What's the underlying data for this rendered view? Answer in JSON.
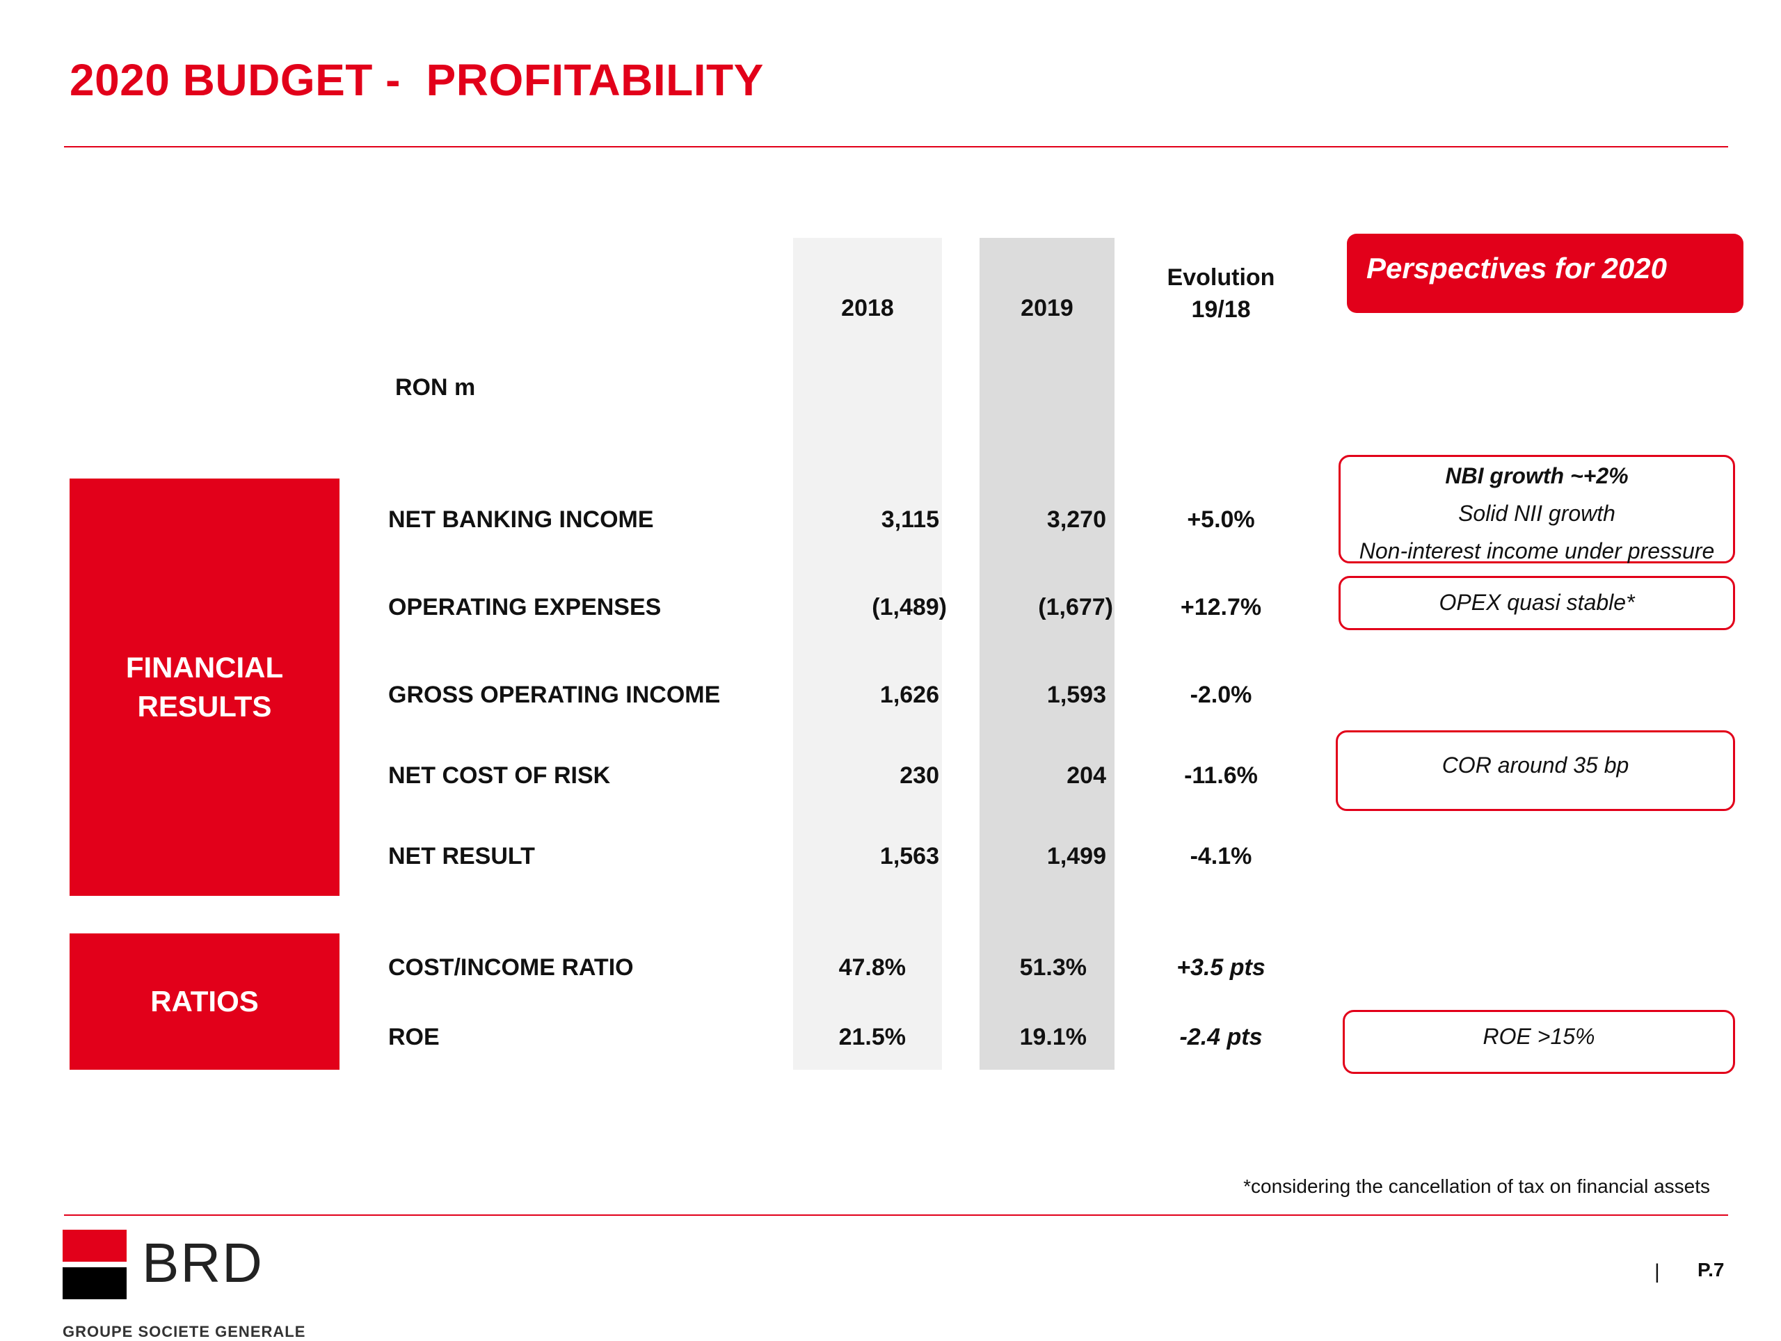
{
  "title": "2020 BUDGET -  PROFITABILITY",
  "unit": "RON m",
  "headers": {
    "y2018": "2018",
    "y2019": "2019",
    "evolution": [
      "Evolution",
      "19/18"
    ]
  },
  "sections": {
    "financial": [
      "FINANCIAL",
      "RESULTS"
    ],
    "ratios": "RATIOS"
  },
  "rows": [
    {
      "label": "NET BANKING INCOME",
      "v2018": "3,115",
      "v2019": "3,270",
      "evo": "+5.0%"
    },
    {
      "label": "OPERATING EXPENSES",
      "v2018": "(1,489)",
      "v2019": "(1,677)",
      "evo": "+12.7%"
    },
    {
      "label": "GROSS OPERATING INCOME",
      "v2018": "1,626",
      "v2019": "1,593",
      "evo": "-2.0%"
    },
    {
      "label": "NET COST OF RISK",
      "v2018": "230",
      "v2019": "204",
      "evo": "-11.6%"
    },
    {
      "label": "NET RESULT",
      "v2018": "1,563",
      "v2019": "1,499",
      "evo": "-4.1%"
    },
    {
      "label": "COST/INCOME RATIO",
      "v2018": "47.8%",
      "v2019": "51.3%",
      "evo": "+3.5 pts"
    },
    {
      "label": "ROE",
      "v2018": "21.5%",
      "v2019": "19.1%",
      "evo": "-2.4 pts"
    }
  ],
  "perspectives": {
    "title": "Perspectives for 2020",
    "nbi": [
      "NBI growth ~+2%",
      "Solid NII growth",
      "Non-interest income under pressure"
    ],
    "opex": "OPEX quasi stable*",
    "cor": "COR around 35 bp",
    "roe": "ROE >15%"
  },
  "footnote": "*considering the cancellation of tax on financial assets",
  "logo": {
    "name": "BRD",
    "sub": "GROUPE SOCIETE GENERALE"
  },
  "page": {
    "separator": "|",
    "number": "P.7"
  },
  "colors": {
    "brand_red": "#e2001a",
    "col_2018_bg": "#f2f2f2",
    "col_2019_bg": "#dcdcdc"
  }
}
